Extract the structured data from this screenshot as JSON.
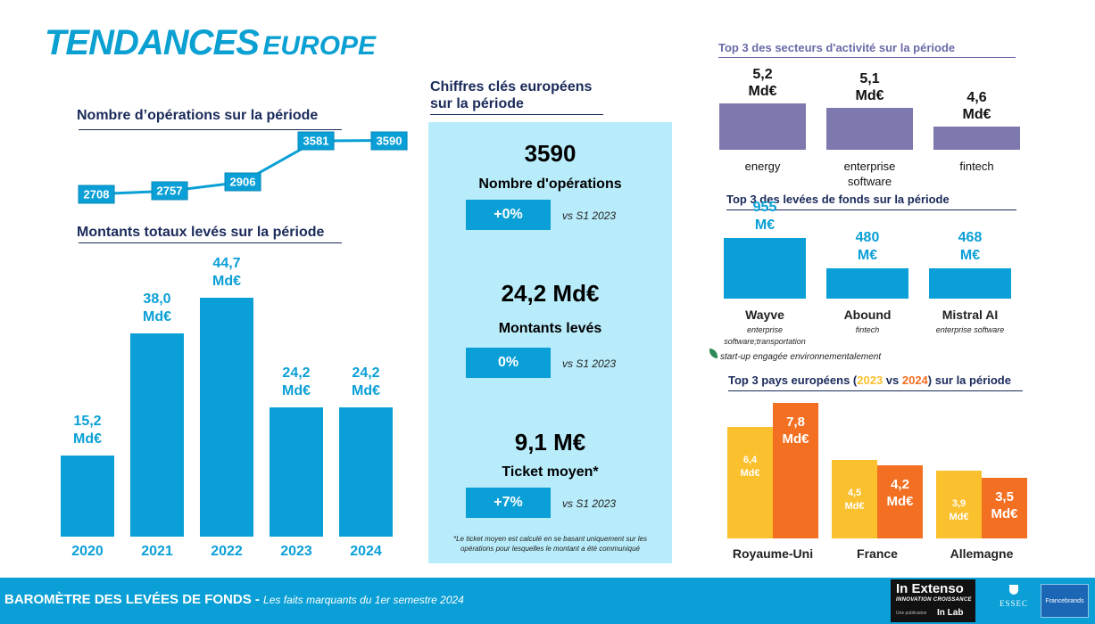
{
  "header": {
    "title_main": "TENDANCES",
    "title_sub": "EUROPE"
  },
  "colors": {
    "accent": "#0a9fd6",
    "navy": "#1a2a5a",
    "sector_purple": "#7d78ad",
    "year_2023": "#fbc02d",
    "year_2024": "#f36f21",
    "panel_bg": "#b8ecfa"
  },
  "chart_data": [
    {
      "type": "line",
      "title": "Nombre d’opérations sur la période",
      "x": [
        1,
        2,
        3,
        4,
        5
      ],
      "values": [
        2708,
        2757,
        2906,
        3581,
        3590
      ],
      "labels": [
        "2708",
        "2757",
        "2906",
        "3581",
        "3590"
      ],
      "ylim": [
        2600,
        3700
      ],
      "grid": false
    },
    {
      "type": "bar",
      "title": "Montants totaux levés sur la période",
      "categories": [
        "2020",
        "2021",
        "2022",
        "2023",
        "2024"
      ],
      "values": [
        15.2,
        38.0,
        44.7,
        24.2,
        24.2
      ],
      "value_labels": [
        "15,2\nMd€",
        "38,0\nMd€",
        "44,7\nMd€",
        "24,2\nMd€",
        "24,2\nMd€"
      ],
      "ylim": [
        0,
        50
      ]
    },
    {
      "type": "bar",
      "title": "Top 3 des secteurs d'activité sur la période",
      "categories": [
        "energy",
        "enterprise\nsoftware",
        "fintech"
      ],
      "values": [
        5.2,
        5.1,
        4.6
      ],
      "value_labels": [
        "5,2\nMd€",
        "5,1\nMd€",
        "4,6\nMd€"
      ],
      "ylim": [
        4.0,
        5.3
      ]
    },
    {
      "type": "bar",
      "title": "Top 3 des levées de fonds sur la période",
      "categories": [
        "Wayve",
        "Abound",
        "Mistral AI"
      ],
      "subcategories": [
        "enterprise\nsoftware;transportation",
        "fintech",
        "enterprise software"
      ],
      "values": [
        955,
        480,
        468
      ],
      "value_labels": [
        "955\nM€",
        "480\nM€",
        "468\nM€"
      ],
      "ylim": [
        0,
        2400
      ]
    },
    {
      "type": "bar",
      "title_parts": [
        "Top 3 pays européens (",
        "2023",
        " vs ",
        "2024",
        ") sur la période"
      ],
      "categories": [
        "Royaume-Uni",
        "France",
        "Allemagne"
      ],
      "series": [
        {
          "name": "2023",
          "values": [
            6.4,
            4.5,
            3.9
          ],
          "labels": [
            "6,4\nMd€",
            "4,5\nMd€",
            "3,9\nMd€"
          ]
        },
        {
          "name": "2024",
          "values": [
            7.8,
            4.2,
            3.5
          ],
          "labels": [
            "7,8\nMd€",
            "4,2\nMd€",
            "3,5\nMd€"
          ]
        }
      ],
      "ylim": [
        0,
        7.8
      ]
    }
  ],
  "key_figures": {
    "title": "Chiffres clés européens\nsur la période",
    "items": [
      {
        "value": "3590",
        "label": "Nombre d'opérations",
        "change": "+0%",
        "vs": "vs S1 2023"
      },
      {
        "value": "24,2 Md€",
        "label": "Montants levés",
        "change": "0%",
        "vs": "vs S1 2023"
      },
      {
        "value": "9,1 M€",
        "label": "Ticket moyen*",
        "change": "+7%",
        "vs": "vs S1 2023"
      }
    ],
    "footnote": "*Le ticket moyen est calculé en se basant uniquement sur les opérations pour lesquelles le montant a été communiqué"
  },
  "green_note": "start-up engagée environnementalement",
  "footer": {
    "bold": "BAROMÈTRE DES LEVÉES DE FONDS - ",
    "italic": "Les faits marquants du 1er semestre 2024",
    "logo_inextenso": "In Extenso",
    "logo_inextenso_sub": "INNOVATION CROISSANCE",
    "logo_inextenso_pub": "Une publication",
    "logo_inextenso_lab": "In Lab",
    "logo_essec": "ESSEC",
    "logo_fb": "Francebrands"
  }
}
